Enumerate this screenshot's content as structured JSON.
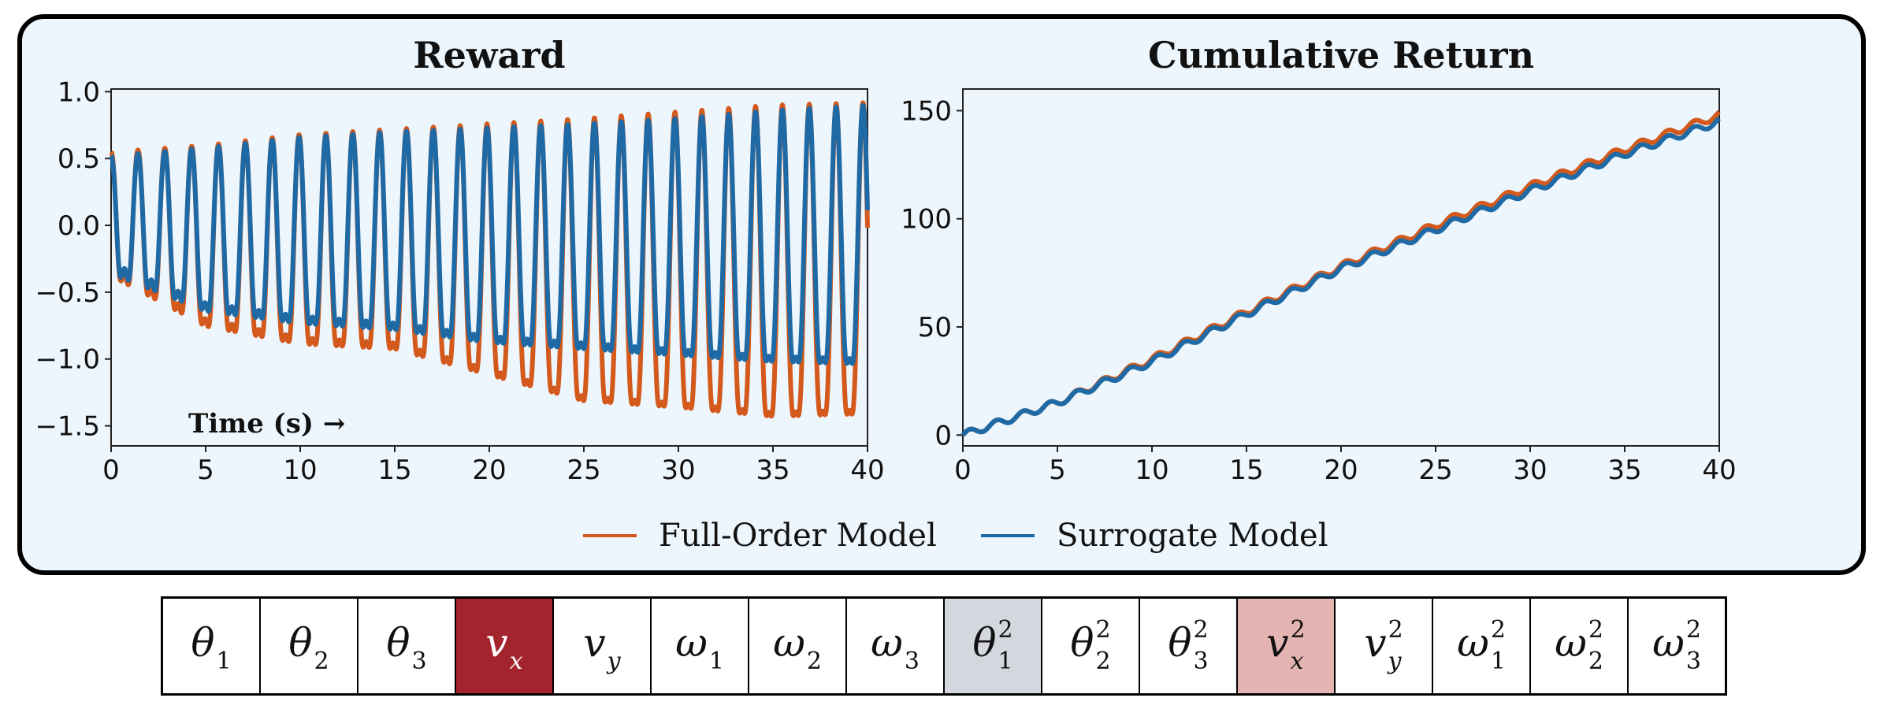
{
  "colors": {
    "full_order": "#d35a1c",
    "surrogate": "#1f6aa5",
    "selected": "#a4242d",
    "highlight_grey": "#d4d8de",
    "highlight_pink": "#e3b4b1"
  },
  "chart_data": [
    {
      "type": "line",
      "title": "Reward",
      "xlabel": "Time (s) →",
      "ylabel": "",
      "xlim": [
        0,
        40
      ],
      "ylim": [
        -1.65,
        1.02
      ],
      "xticks": [
        "0",
        "5",
        "10",
        "15",
        "20",
        "25",
        "30",
        "35",
        "40"
      ],
      "yticks": [
        "−1.5",
        "−1.0",
        "−0.5",
        "0.0",
        "0.5",
        "1.0"
      ],
      "ytick_values": [
        -1.5,
        -1.0,
        -0.5,
        0.0,
        0.5,
        1.0
      ],
      "series": [
        {
          "name": "Full-Order Model",
          "x": [
            0,
            5,
            10,
            15,
            20,
            25,
            30,
            35,
            40
          ],
          "peaks": [
            0.55,
            0.6,
            0.68,
            0.72,
            0.76,
            0.8,
            0.85,
            0.9,
            0.92
          ],
          "troughs": [
            -0.42,
            -0.82,
            -0.96,
            -1.0,
            -1.2,
            -1.4,
            -1.45,
            -1.52,
            -1.5
          ]
        },
        {
          "name": "Surrogate Model",
          "x": [
            0,
            5,
            10,
            15,
            20,
            25,
            30,
            35,
            40
          ],
          "peaks": [
            0.52,
            0.58,
            0.66,
            0.7,
            0.73,
            0.76,
            0.8,
            0.86,
            0.9
          ],
          "troughs": [
            -0.4,
            -0.7,
            -0.8,
            -0.85,
            -0.95,
            -1.0,
            -1.05,
            -1.1,
            -1.12
          ]
        }
      ]
    },
    {
      "type": "line",
      "title": "Cumulative Return",
      "xlabel": "",
      "ylabel": "",
      "xlim": [
        0,
        40
      ],
      "ylim": [
        -5,
        160
      ],
      "xticks": [
        "0",
        "5",
        "10",
        "15",
        "20",
        "25",
        "30",
        "35",
        "40"
      ],
      "yticks": [
        "0",
        "50",
        "100",
        "150"
      ],
      "ytick_values": [
        0,
        50,
        100,
        150
      ],
      "series": [
        {
          "name": "Full-Order Model",
          "x": [
            0,
            5,
            10,
            15,
            20,
            25,
            30,
            35,
            40
          ],
          "y": [
            0,
            15,
            35,
            57,
            78,
            97,
            115,
            132,
            148
          ]
        },
        {
          "name": "Surrogate Model",
          "x": [
            0,
            5,
            10,
            15,
            20,
            25,
            30,
            35,
            40
          ],
          "y": [
            0,
            15,
            34,
            56,
            77,
            95,
            113,
            130,
            145
          ]
        }
      ]
    }
  ],
  "legend": [
    {
      "label": "Full-Order Model"
    },
    {
      "label": "Surrogate Model"
    }
  ],
  "features": [
    {
      "sym": "θ",
      "sub": "1",
      "sup": "",
      "state": ""
    },
    {
      "sym": "θ",
      "sub": "2",
      "sup": "",
      "state": ""
    },
    {
      "sym": "θ",
      "sub": "3",
      "sup": "",
      "state": ""
    },
    {
      "sym": "v",
      "sub": "x",
      "sup": "",
      "state": "selected"
    },
    {
      "sym": "v",
      "sub": "y",
      "sup": "",
      "state": ""
    },
    {
      "sym": "ω",
      "sub": "1",
      "sup": "",
      "state": ""
    },
    {
      "sym": "ω",
      "sub": "2",
      "sup": "",
      "state": ""
    },
    {
      "sym": "ω",
      "sub": "3",
      "sup": "",
      "state": ""
    },
    {
      "sym": "θ",
      "sub": "1",
      "sup": "2",
      "state": "grey"
    },
    {
      "sym": "θ",
      "sub": "2",
      "sup": "2",
      "state": ""
    },
    {
      "sym": "θ",
      "sub": "3",
      "sup": "2",
      "state": ""
    },
    {
      "sym": "v",
      "sub": "x",
      "sup": "2",
      "state": "pink"
    },
    {
      "sym": "v",
      "sub": "y",
      "sup": "2",
      "state": ""
    },
    {
      "sym": "ω",
      "sub": "1",
      "sup": "2",
      "state": ""
    },
    {
      "sym": "ω",
      "sub": "2",
      "sup": "2",
      "state": ""
    },
    {
      "sym": "ω",
      "sub": "3",
      "sup": "2",
      "state": ""
    }
  ]
}
